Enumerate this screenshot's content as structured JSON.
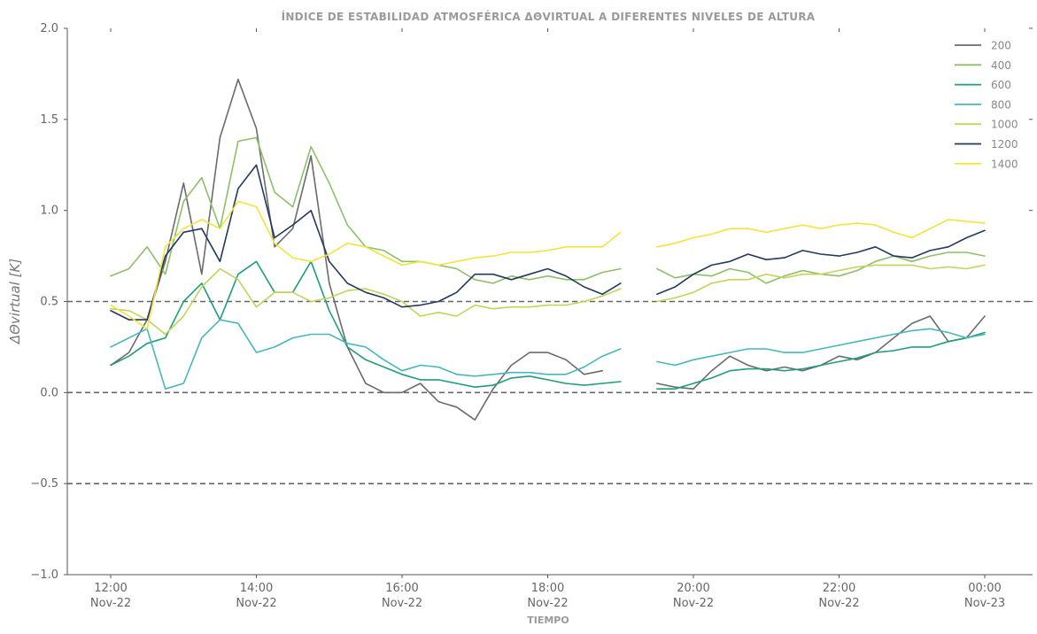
{
  "chart_data": {
    "type": "line",
    "title": "ÍNDICE DE ESTABILIDAD ATMOSFÉRICA ΔΘVIRTUAL A DIFERENTES NIVELES DE ALTURA",
    "xlabel": "TIEMPO",
    "ylabel": "ΔΘvirtual [K]",
    "ylim": [
      -1.0,
      2.0
    ],
    "yticks": [
      -1.0,
      -0.5,
      0.0,
      0.5,
      1.0,
      1.5,
      2.0
    ],
    "ytick_labels": [
      "−1.0",
      "−0.5",
      "0.0",
      "0.5",
      "1.0",
      "1.5",
      "2.0"
    ],
    "xlim": [
      "2022-11-22 12:00",
      "2022-11-23 00:00"
    ],
    "xticks": [
      "2022-11-22 12:00",
      "2022-11-22 14:00",
      "2022-11-22 16:00",
      "2022-11-22 18:00",
      "2022-11-22 20:00",
      "2022-11-22 22:00",
      "2022-11-23 00:00"
    ],
    "xtick_labels": [
      [
        "12:00",
        "Nov-22"
      ],
      [
        "14:00",
        "Nov-22"
      ],
      [
        "16:00",
        "Nov-22"
      ],
      [
        "18:00",
        "Nov-22"
      ],
      [
        "20:00",
        "Nov-22"
      ],
      [
        "22:00",
        "Nov-22"
      ],
      [
        "00:00",
        "Nov-23"
      ]
    ],
    "reference_lines": [
      0.5,
      0.0,
      -0.5
    ],
    "grid": false,
    "legend_position": "top-right",
    "x": [
      "12:00",
      "12:15",
      "12:30",
      "12:45",
      "13:00",
      "13:15",
      "13:30",
      "13:45",
      "14:00",
      "14:15",
      "14:30",
      "14:45",
      "15:00",
      "15:15",
      "15:30",
      "15:45",
      "16:00",
      "16:15",
      "16:30",
      "16:45",
      "17:00",
      "17:15",
      "17:30",
      "17:45",
      "18:00",
      "18:15",
      "18:30",
      "18:45",
      "19:00",
      "19:15",
      "19:30",
      "19:45",
      "20:00",
      "20:15",
      "20:30",
      "20:45",
      "21:00",
      "21:15",
      "21:30",
      "21:45",
      "22:00",
      "22:15",
      "22:30",
      "22:45",
      "23:00",
      "23:15",
      "23:30",
      "23:45",
      "00:00"
    ],
    "series": [
      {
        "name": "200",
        "color": "#6b6b6b",
        "values": [
          0.15,
          0.22,
          0.4,
          0.72,
          1.15,
          0.65,
          1.4,
          1.72,
          1.45,
          0.8,
          0.9,
          1.3,
          0.6,
          0.25,
          0.05,
          0.0,
          0.0,
          0.05,
          -0.05,
          -0.08,
          -0.15,
          0.02,
          0.15,
          0.22,
          0.22,
          0.18,
          0.1,
          0.12,
          null,
          null,
          0.05,
          0.03,
          0.02,
          0.12,
          0.2,
          0.15,
          0.12,
          0.14,
          0.12,
          0.15,
          0.2,
          0.18,
          0.22,
          0.3,
          0.38,
          0.42,
          0.28,
          0.3,
          0.42
        ]
      },
      {
        "name": "400",
        "color": "#8dbf6a",
        "values": [
          0.64,
          0.68,
          0.8,
          0.65,
          1.05,
          1.18,
          0.9,
          1.38,
          1.4,
          1.1,
          1.02,
          1.35,
          1.15,
          0.92,
          0.8,
          0.78,
          0.72,
          0.72,
          0.7,
          0.68,
          0.62,
          0.6,
          0.64,
          0.62,
          0.64,
          0.62,
          0.62,
          0.66,
          0.68,
          null,
          0.68,
          0.63,
          0.65,
          0.64,
          0.68,
          0.66,
          0.6,
          0.64,
          0.67,
          0.65,
          0.64,
          0.67,
          0.72,
          0.75,
          0.72,
          0.75,
          0.77,
          0.77,
          0.75
        ]
      },
      {
        "name": "600",
        "color": "#1f9e7a",
        "values": [
          0.15,
          0.2,
          0.27,
          0.3,
          0.5,
          0.6,
          0.4,
          0.65,
          0.72,
          0.55,
          0.55,
          0.72,
          0.45,
          0.25,
          0.18,
          0.14,
          0.1,
          0.07,
          0.07,
          0.05,
          0.03,
          0.04,
          0.08,
          0.09,
          0.07,
          0.05,
          0.04,
          0.05,
          0.06,
          null,
          0.02,
          0.02,
          0.05,
          0.08,
          0.12,
          0.13,
          0.13,
          0.12,
          0.13,
          0.15,
          0.17,
          0.19,
          0.22,
          0.23,
          0.25,
          0.25,
          0.28,
          0.3,
          0.33
        ]
      },
      {
        "name": "800",
        "color": "#46b7bd",
        "values": [
          0.25,
          0.3,
          0.35,
          0.02,
          0.05,
          0.3,
          0.4,
          0.38,
          0.22,
          0.25,
          0.3,
          0.32,
          0.32,
          0.27,
          0.25,
          0.18,
          0.12,
          0.15,
          0.14,
          0.1,
          0.09,
          0.1,
          0.11,
          0.11,
          0.1,
          0.1,
          0.14,
          0.2,
          0.24,
          null,
          0.17,
          0.15,
          0.18,
          0.2,
          0.22,
          0.24,
          0.24,
          0.22,
          0.22,
          0.24,
          0.26,
          0.28,
          0.3,
          0.32,
          0.34,
          0.35,
          0.33,
          0.3,
          0.32
        ]
      },
      {
        "name": "1000",
        "color": "#c2d45a",
        "values": [
          0.46,
          0.45,
          0.4,
          0.32,
          0.42,
          0.58,
          0.68,
          0.62,
          0.47,
          0.55,
          0.55,
          0.5,
          0.52,
          0.56,
          0.57,
          0.54,
          0.5,
          0.42,
          0.44,
          0.42,
          0.48,
          0.46,
          0.47,
          0.47,
          0.48,
          0.48,
          0.5,
          0.53,
          0.57,
          null,
          0.5,
          0.52,
          0.55,
          0.6,
          0.62,
          0.62,
          0.65,
          0.63,
          0.65,
          0.65,
          0.67,
          0.69,
          0.7,
          0.7,
          0.7,
          0.68,
          0.69,
          0.68,
          0.7
        ]
      },
      {
        "name": "1200",
        "color": "#223a5e",
        "values": [
          0.45,
          0.4,
          0.4,
          0.75,
          0.88,
          0.9,
          0.72,
          1.12,
          1.25,
          0.85,
          0.92,
          1.0,
          0.72,
          0.6,
          0.55,
          0.52,
          0.47,
          0.48,
          0.5,
          0.55,
          0.65,
          0.65,
          0.62,
          0.65,
          0.68,
          0.64,
          0.58,
          0.54,
          0.6,
          null,
          0.54,
          0.58,
          0.65,
          0.7,
          0.72,
          0.76,
          0.73,
          0.74,
          0.78,
          0.76,
          0.75,
          0.77,
          0.8,
          0.75,
          0.74,
          0.78,
          0.8,
          0.85,
          0.89
        ]
      },
      {
        "name": "1400",
        "color": "#f4e33c",
        "values": [
          0.48,
          0.42,
          0.35,
          0.8,
          0.9,
          0.95,
          0.9,
          1.05,
          1.02,
          0.82,
          0.74,
          0.72,
          0.76,
          0.82,
          0.8,
          0.75,
          0.7,
          0.72,
          0.7,
          0.72,
          0.74,
          0.75,
          0.77,
          0.77,
          0.78,
          0.8,
          0.8,
          0.8,
          0.88,
          null,
          0.8,
          0.82,
          0.85,
          0.87,
          0.9,
          0.9,
          0.88,
          0.9,
          0.92,
          0.9,
          0.92,
          0.93,
          0.92,
          0.88,
          0.85,
          0.9,
          0.95,
          0.94,
          0.93
        ]
      }
    ]
  }
}
